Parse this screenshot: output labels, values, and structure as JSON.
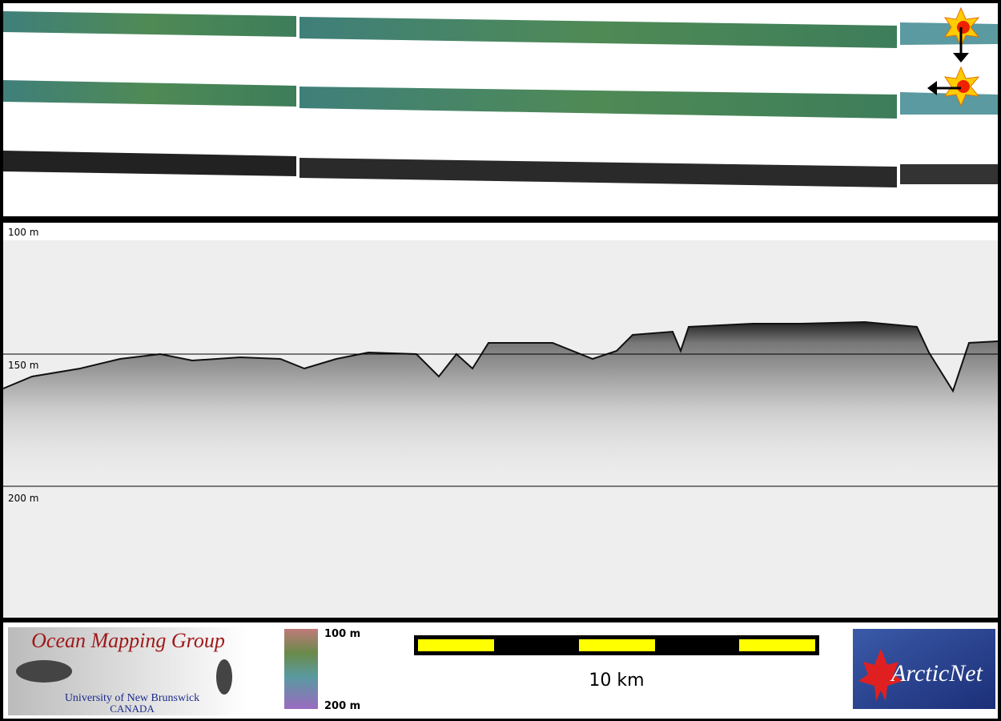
{
  "depth_axis": {
    "labels": [
      "100 m",
      "150 m",
      "200 m"
    ]
  },
  "color_legend": {
    "top_label": "100 m",
    "bottom_label": "200 m"
  },
  "scale_bar": {
    "label": "10 km"
  },
  "logos": {
    "omg": {
      "title": "Ocean Mapping Group",
      "university": "University of New Brunswick",
      "country": "CANADA"
    },
    "arcticnet": {
      "name": "ArcticNet"
    }
  }
}
